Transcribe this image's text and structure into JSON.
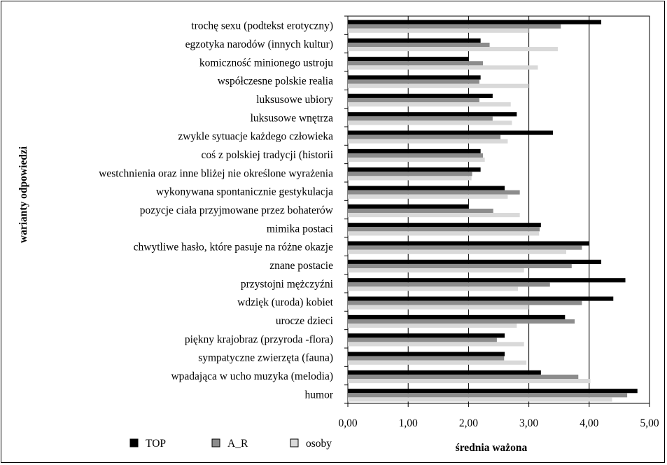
{
  "chart_data": {
    "type": "bar",
    "orientation": "horizontal",
    "title": "",
    "xlabel": "średnia ważona",
    "ylabel": "warianty odpowiedzi",
    "xlim": [
      0,
      5
    ],
    "x_ticks": [
      "0,00",
      "1,00",
      "2,00",
      "3,00",
      "4,00",
      "5,00"
    ],
    "grid": "vertical",
    "legend_position": "bottom-left",
    "categories": [
      "trochę sexu (podtekst erotyczny)",
      "egzotyka narodów (innych kultur)",
      "komiczność minionego ustroju",
      "współczesne polskie realia",
      "luksusowe ubiory",
      "luksusowe wnętrza",
      "zwykle sytuacje każdego człowieka",
      "coś z polskiej tradycji (historii",
      "westchnienia oraz inne bliżej nie określone wyrażenia",
      "wykonywana spontanicznie gestykulacja",
      "pozycje ciała przyjmowane przez bohaterów",
      "mimika postaci",
      "chwytliwe hasło, które pasuje na różne okazje",
      "znane postacie",
      "przystojni mężczyźni",
      "wdzięk (uroda) kobiet",
      "urocze dzieci",
      "piękny krajobraz (przyroda -flora)",
      "sympatyczne zwierzęta (fauna)",
      "wpadająca w ucho muzyka (melodia)",
      "humor"
    ],
    "series": [
      {
        "name": "TOP",
        "color": "#000000",
        "values": [
          4.2,
          2.2,
          2.0,
          2.2,
          2.4,
          2.8,
          3.4,
          2.2,
          2.2,
          2.6,
          2.0,
          3.2,
          4.0,
          4.2,
          4.6,
          4.4,
          3.6,
          2.6,
          2.6,
          3.2,
          4.8
        ]
      },
      {
        "name": "A_R",
        "color": "#8c8c8c",
        "values": [
          3.53,
          2.35,
          2.24,
          2.18,
          2.18,
          2.4,
          2.53,
          2.24,
          2.06,
          2.85,
          2.41,
          3.18,
          3.88,
          3.71,
          3.35,
          3.88,
          3.76,
          2.47,
          2.59,
          3.82,
          4.63
        ]
      },
      {
        "name": "osoby",
        "color": "#d9d9d9",
        "values": [
          3.0,
          3.48,
          3.15,
          3.0,
          2.7,
          2.72,
          2.65,
          2.27,
          2.05,
          2.65,
          2.85,
          3.17,
          3.62,
          2.92,
          2.82,
          3.0,
          2.8,
          2.92,
          2.96,
          4.02,
          4.38
        ]
      }
    ]
  }
}
